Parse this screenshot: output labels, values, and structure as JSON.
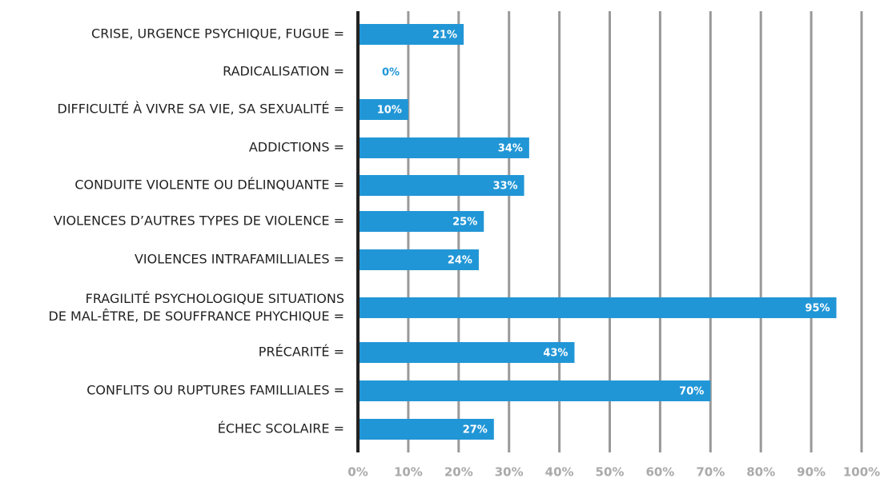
{
  "chart_data": {
    "type": "bar",
    "orientation": "horizontal",
    "categories": [
      "CRISE, URGENCE PSYCHIQUE, FUGUE =",
      "RADICALISATION =",
      "DIFFICULTÉ À VIVRE SA VIE, SA SEXUALITÉ =",
      "ADDICTIONS =",
      "CONDUITE VIOLENTE OU DÉLINQUANTE =",
      "VIOLENCES D’AUTRES TYPES DE VIOLENCE =",
      "VIOLENCES INTRAFAMILLIALES =",
      "FRAGILITÉ PSYCHOLOGIQUE SITUATIONS\nDE MAL-ÊTRE, DE SOUFFRANCE PHYCHIQUE =",
      "PRÉCARITÉ =",
      "CONFLITS OU RUPTURES FAMILLIALES =",
      "ÉCHEC SCOLAIRE ="
    ],
    "values": [
      21,
      0,
      10,
      34,
      33,
      25,
      24,
      95,
      43,
      70,
      27
    ],
    "value_labels": [
      "21%",
      "0%",
      "10%",
      "34%",
      "33%",
      "25%",
      "24%",
      "95%",
      "43%",
      "70%",
      "27%"
    ],
    "color": "#2196d6",
    "xlim": [
      0,
      100
    ],
    "xticks": [
      {
        "value": 0,
        "label": "0%"
      },
      {
        "value": 10,
        "label": "10%"
      },
      {
        "value": 20,
        "label": "20%"
      },
      {
        "value": 30,
        "label": "30%"
      },
      {
        "value": 40,
        "label": "40%"
      },
      {
        "value": 50,
        "label": "50%"
      },
      {
        "value": 60,
        "label": "60%"
      },
      {
        "value": 70,
        "label": "70%"
      },
      {
        "value": 80,
        "label": "80%"
      },
      {
        "value": 90,
        "label": "90%"
      },
      {
        "value": 100,
        "label": "100%"
      }
    ],
    "grid": true
  }
}
